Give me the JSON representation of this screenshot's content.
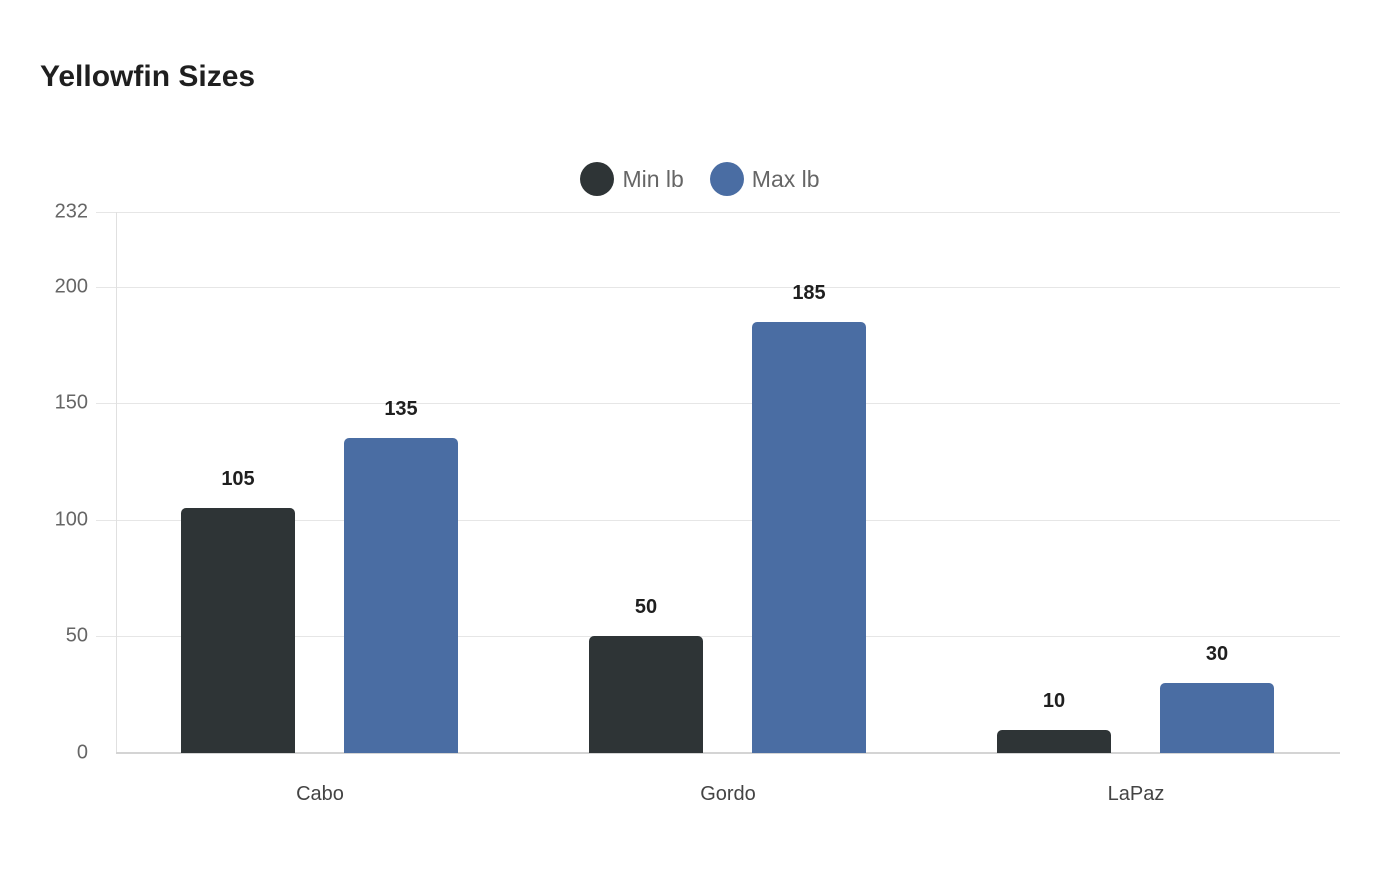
{
  "chart_data": {
    "type": "bar",
    "title": "Yellowfin Sizes",
    "categories": [
      "Cabo",
      "Gordo",
      "LaPaz"
    ],
    "series": [
      {
        "name": "Min lb",
        "color": "#2e3436",
        "values": [
          105,
          50,
          10
        ]
      },
      {
        "name": "Max lb",
        "color": "#4a6da3",
        "values": [
          135,
          185,
          30
        ]
      }
    ],
    "xlabel": "",
    "ylabel": "",
    "ylim": [
      0,
      232
    ],
    "yticks": [
      0,
      50,
      100,
      150,
      200,
      232
    ],
    "grid": true,
    "legend_position": "top-center",
    "data_labels": true
  },
  "title": "Yellowfin Sizes",
  "legend": [
    {
      "label": "Min lb",
      "color": "#2e3436"
    },
    {
      "label": "Max lb",
      "color": "#4a6da3"
    }
  ]
}
